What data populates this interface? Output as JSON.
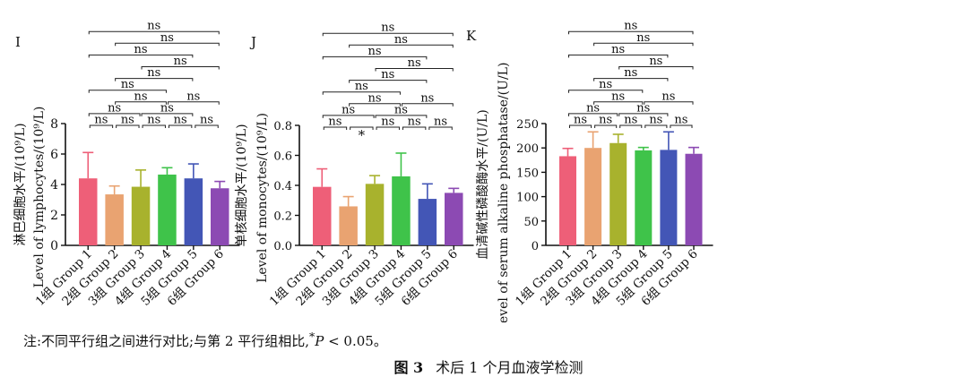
{
  "figure": {
    "note_prefix": "注:不同平行组之间进行对比;与第 2 平行组相比,",
    "note_star": "*",
    "note_p": "P",
    "note_suffix": " < 0.05。",
    "caption_label": "图 3",
    "caption_text": "术后 1 个月血液学检测"
  },
  "colors": [
    "#ee5f78",
    "#e9a371",
    "#a8b22d",
    "#3fc34a",
    "#4356b6",
    "#8c4ab3"
  ],
  "chart_data": [
    {
      "panel": "I",
      "type": "bar",
      "categories": [
        "1组 Group 1",
        "2组 Group 2",
        "3组 Group 3",
        "4组 Group 4",
        "5组 Group 5",
        "6组 Group 6"
      ],
      "values": [
        4.4,
        3.35,
        3.85,
        4.65,
        4.4,
        3.75
      ],
      "errors": [
        1.7,
        0.55,
        1.1,
        0.45,
        0.95,
        0.45
      ],
      "ylabel_cn": "淋巴细胞水平/(10⁹/L)",
      "ylabel_en": "Level of lymphocytes/(10⁹/L)",
      "ylim": [
        0,
        8
      ],
      "ticks": [
        "0",
        "2",
        "4",
        "6",
        "8"
      ],
      "comparisons": [
        {
          "a": 0,
          "b": 1,
          "label": "ns"
        },
        {
          "a": 1,
          "b": 2,
          "label": "ns"
        },
        {
          "a": 2,
          "b": 3,
          "label": "ns"
        },
        {
          "a": 3,
          "b": 4,
          "label": "ns"
        },
        {
          "a": 4,
          "b": 5,
          "label": "ns"
        },
        {
          "a": 0,
          "b": 2,
          "label": "ns"
        },
        {
          "a": 1,
          "b": 3,
          "label": "ns"
        },
        {
          "a": 2,
          "b": 4,
          "label": "ns"
        },
        {
          "a": 3,
          "b": 5,
          "label": "ns"
        },
        {
          "a": 0,
          "b": 3,
          "label": "ns"
        },
        {
          "a": 1,
          "b": 4,
          "label": "ns"
        },
        {
          "a": 2,
          "b": 5,
          "label": "ns"
        },
        {
          "a": 0,
          "b": 4,
          "label": "ns"
        },
        {
          "a": 1,
          "b": 5,
          "label": "ns"
        },
        {
          "a": 0,
          "b": 5,
          "label": "ns"
        }
      ]
    },
    {
      "panel": "J",
      "type": "bar",
      "categories": [
        "1组 Group 1",
        "2组 Group 2",
        "3组 Group 3",
        "4组 Group 4",
        "5组 Group 5",
        "6组 Group 6"
      ],
      "values": [
        0.39,
        0.26,
        0.41,
        0.46,
        0.31,
        0.35
      ],
      "errors": [
        0.12,
        0.065,
        0.055,
        0.155,
        0.1,
        0.03
      ],
      "ylabel_cn": "单核细胞水平/(10⁹/L)",
      "ylabel_en": "Level of monocytes/(10⁹/L)",
      "ylim": [
        0,
        0.8
      ],
      "ticks": [
        "0.0",
        "0.2",
        "0.4",
        "0.6",
        "0.8"
      ],
      "comparisons": [
        {
          "a": 0,
          "b": 1,
          "label": "ns"
        },
        {
          "a": 1,
          "b": 2,
          "label": "*"
        },
        {
          "a": 2,
          "b": 3,
          "label": "ns"
        },
        {
          "a": 3,
          "b": 4,
          "label": "ns"
        },
        {
          "a": 4,
          "b": 5,
          "label": "ns"
        },
        {
          "a": 0,
          "b": 2,
          "label": "ns"
        },
        {
          "a": 1,
          "b": 3,
          "label": "ns"
        },
        {
          "a": 2,
          "b": 4,
          "label": "ns"
        },
        {
          "a": 3,
          "b": 5,
          "label": "ns"
        },
        {
          "a": 0,
          "b": 3,
          "label": "ns"
        },
        {
          "a": 1,
          "b": 4,
          "label": "ns"
        },
        {
          "a": 2,
          "b": 5,
          "label": "ns"
        },
        {
          "a": 0,
          "b": 4,
          "label": "ns"
        },
        {
          "a": 1,
          "b": 5,
          "label": "ns"
        },
        {
          "a": 0,
          "b": 5,
          "label": "ns"
        }
      ]
    },
    {
      "panel": "K",
      "type": "bar",
      "categories": [
        "1组 Group 1",
        "2组 Group 2",
        "3组 Group 3",
        "4组 Group 4",
        "5组 Group 5",
        "6组 Group 6"
      ],
      "values": [
        183,
        200,
        210,
        195,
        196,
        188
      ],
      "errors": [
        16,
        33,
        18,
        6,
        37,
        13
      ],
      "ylabel_cn": "血清碱性磷酸酶水平/(U/L)",
      "ylabel_en": "Level of serum alkaline phosphatase/(U/L)",
      "ylim": [
        0,
        250
      ],
      "ticks": [
        "0",
        "50",
        "100",
        "150",
        "200",
        "250"
      ],
      "comparisons": [
        {
          "a": 0,
          "b": 1,
          "label": "ns"
        },
        {
          "a": 1,
          "b": 2,
          "label": "ns"
        },
        {
          "a": 2,
          "b": 3,
          "label": "ns"
        },
        {
          "a": 3,
          "b": 4,
          "label": "ns"
        },
        {
          "a": 4,
          "b": 5,
          "label": "ns"
        },
        {
          "a": 0,
          "b": 2,
          "label": "ns"
        },
        {
          "a": 1,
          "b": 3,
          "label": "ns"
        },
        {
          "a": 2,
          "b": 4,
          "label": "ns"
        },
        {
          "a": 3,
          "b": 5,
          "label": "ns"
        },
        {
          "a": 0,
          "b": 3,
          "label": "ns"
        },
        {
          "a": 1,
          "b": 4,
          "label": "ns"
        },
        {
          "a": 2,
          "b": 5,
          "label": "ns"
        },
        {
          "a": 0,
          "b": 4,
          "label": "ns"
        },
        {
          "a": 1,
          "b": 5,
          "label": "ns"
        },
        {
          "a": 0,
          "b": 5,
          "label": "ns"
        }
      ]
    }
  ]
}
